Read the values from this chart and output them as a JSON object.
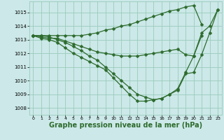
{
  "bg_color": "#cce8e8",
  "grid_color": "#99ccbb",
  "line_color": "#2d6b2d",
  "marker_color": "#2d6b2d",
  "xlabel": "Graphe pression niveau de la mer (hPa)",
  "xlabel_fontsize": 7.0,
  "ylim": [
    1007.5,
    1015.8
  ],
  "xlim": [
    -0.5,
    23.5
  ],
  "yticks": [
    1008,
    1009,
    1010,
    1011,
    1012,
    1013,
    1014,
    1015
  ],
  "xticks": [
    0,
    1,
    2,
    3,
    4,
    5,
    6,
    7,
    8,
    9,
    10,
    11,
    12,
    13,
    14,
    15,
    16,
    17,
    18,
    19,
    20,
    21,
    22,
    23
  ],
  "line1": [
    1013.3,
    1013.3,
    1013.3,
    1013.3,
    1013.3,
    1013.3,
    1013.3,
    1013.4,
    1013.5,
    1013.7,
    1013.8,
    1014.0,
    1014.1,
    1014.3,
    1014.5,
    1014.7,
    1014.9,
    1015.1,
    1015.2,
    1015.4,
    1015.5,
    1014.1,
    null,
    null
  ],
  "line2": [
    1013.3,
    1013.2,
    1013.1,
    1013.1,
    1012.9,
    1012.7,
    1012.5,
    1012.3,
    1012.1,
    1012.0,
    1011.9,
    1011.8,
    1011.8,
    1011.8,
    1011.9,
    1012.0,
    1012.1,
    1012.2,
    1012.3,
    1011.9,
    1011.8,
    1013.3,
    null,
    null
  ],
  "line3": [
    1013.3,
    1013.1,
    1013.0,
    1012.8,
    1012.4,
    1012.0,
    1011.7,
    1011.4,
    1011.1,
    1010.8,
    1010.2,
    1009.6,
    1009.0,
    1008.5,
    1008.5,
    1008.6,
    1008.7,
    1009.0,
    1009.3,
    1010.5,
    1010.6,
    1011.9,
    1013.5,
    1015.2
  ],
  "line4": [
    1013.3,
    1013.3,
    1013.2,
    1013.0,
    1012.8,
    1012.5,
    1012.2,
    1011.8,
    1011.5,
    1011.0,
    1010.5,
    1010.0,
    1009.5,
    1009.0,
    1008.8,
    1008.6,
    1008.7,
    1009.0,
    1009.4,
    1010.6,
    1011.8,
    1013.5,
    1014.0,
    1015.2
  ],
  "marker_size": 2.5,
  "line_width": 0.9
}
